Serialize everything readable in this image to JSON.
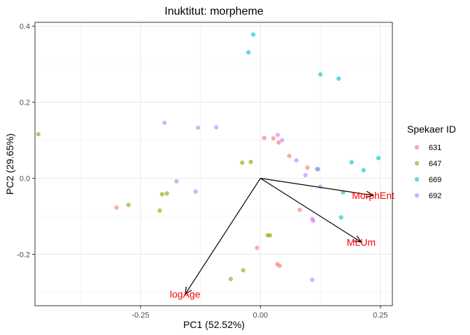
{
  "chart_data": {
    "type": "scatter",
    "title": "Inuktitut: morpheme",
    "xlabel": "PC1 (52.52%)",
    "ylabel": "PC2 (29.65%)",
    "xlim": [
      -0.47,
      0.275
    ],
    "ylim": [
      -0.335,
      0.41
    ],
    "x_ticks": [
      -0.25,
      0.0,
      0.25
    ],
    "x_tick_labels": [
      "-0.25",
      "0.00",
      "0.25"
    ],
    "y_ticks": [
      -0.2,
      0.0,
      0.2,
      0.4
    ],
    "y_tick_labels": [
      "-0.2",
      "0.0",
      "0.2",
      "0.4"
    ],
    "grid": true,
    "legend": {
      "title": "Spekaer ID",
      "position": "right"
    },
    "series": [
      {
        "name": "631",
        "color": "#F8766D",
        "points": [
          [
            -0.3,
            -0.077
          ],
          [
            0.008,
            0.106
          ],
          [
            0.027,
            0.105
          ],
          [
            0.038,
            0.094
          ],
          [
            0.06,
            0.059
          ],
          [
            0.082,
            -0.083
          ],
          [
            0.098,
            0.028
          ],
          [
            -0.007,
            -0.183
          ],
          [
            0.035,
            -0.226
          ],
          [
            0.04,
            -0.23
          ]
        ]
      },
      {
        "name": "647",
        "color": "#7CAE00",
        "points": [
          [
            -0.463,
            0.116
          ],
          [
            -0.275,
            -0.07
          ],
          [
            -0.205,
            -0.042
          ],
          [
            -0.195,
            -0.04
          ],
          [
            -0.21,
            -0.085
          ],
          [
            -0.038,
            0.041
          ],
          [
            -0.02,
            0.043
          ],
          [
            0.015,
            -0.15
          ],
          [
            0.02,
            -0.15
          ],
          [
            -0.036,
            -0.242
          ],
          [
            -0.062,
            -0.265
          ]
        ]
      },
      {
        "name": "669",
        "color": "#00BFC4",
        "points": [
          [
            -0.015,
            0.378
          ],
          [
            -0.025,
            0.331
          ],
          [
            0.125,
            0.273
          ],
          [
            0.163,
            0.262
          ],
          [
            0.12,
            0.024
          ],
          [
            0.172,
            -0.037
          ],
          [
            0.19,
            0.042
          ],
          [
            0.215,
            0.021
          ],
          [
            0.246,
            0.053
          ],
          [
            0.168,
            -0.103
          ]
        ]
      },
      {
        "name": "692",
        "color": "#C77CFF",
        "points": [
          [
            -0.2,
            0.146
          ],
          [
            -0.13,
            0.133
          ],
          [
            -0.092,
            0.134
          ],
          [
            0.036,
            0.114
          ],
          [
            0.045,
            0.1
          ],
          [
            0.075,
            0.047
          ],
          [
            0.118,
            0.024
          ],
          [
            0.094,
            0.008
          ],
          [
            -0.175,
            -0.008
          ],
          [
            -0.135,
            -0.035
          ],
          [
            0.125,
            -0.022
          ],
          [
            0.108,
            -0.107
          ],
          [
            0.11,
            -0.112
          ],
          [
            0.108,
            -0.267
          ]
        ]
      }
    ],
    "arrows": [
      {
        "label": "MorphEnt",
        "x": 0.235,
        "y": -0.045
      },
      {
        "label": "MLUm",
        "x": 0.21,
        "y": -0.168
      },
      {
        "label": "logAge",
        "x": -0.157,
        "y": -0.305
      }
    ],
    "arrow_color": "#000000",
    "arrow_label_color": "#FF0000"
  }
}
